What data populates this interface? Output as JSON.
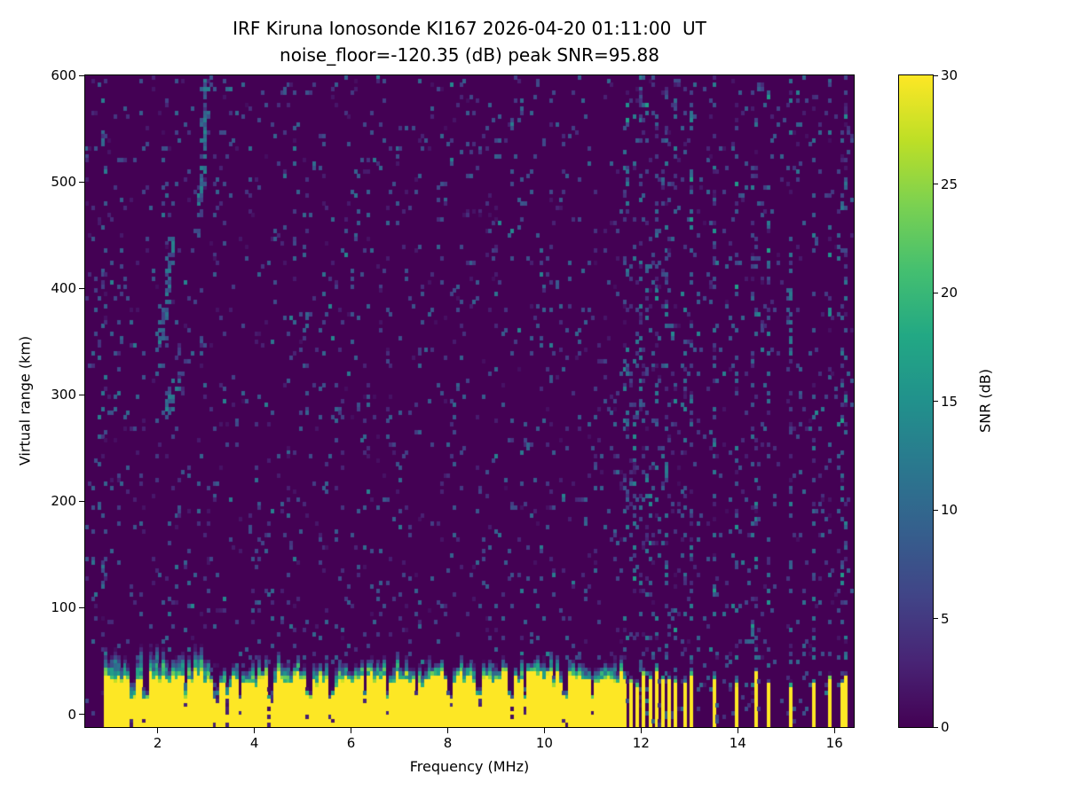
{
  "chart_data": {
    "type": "heatmap",
    "title": "IRF Kiruna Ionosonde KI167 2026-04-20 01:11:00  UT",
    "subtitle": "noise_floor=-120.35 (dB) peak SNR=95.88",
    "xlabel": "Frequency (MHz)",
    "ylabel": "Virtual range (km)",
    "xlim": [
      0.5,
      16.4
    ],
    "ylim": [
      -12,
      600
    ],
    "xticks": [
      2,
      4,
      6,
      8,
      10,
      12,
      14,
      16
    ],
    "yticks": [
      0,
      100,
      200,
      300,
      400,
      500,
      600
    ],
    "grid": false,
    "colorbar": {
      "label": "SNR (dB)",
      "min": 0,
      "max": 30,
      "ticks": [
        0,
        5,
        10,
        15,
        20,
        25,
        30
      ]
    },
    "colormap": {
      "name": "viridis",
      "stops": [
        [
          0.0,
          "#440154"
        ],
        [
          0.1,
          "#482475"
        ],
        [
          0.2,
          "#414487"
        ],
        [
          0.3,
          "#355f8d"
        ],
        [
          0.4,
          "#2a788e"
        ],
        [
          0.5,
          "#21918c"
        ],
        [
          0.6,
          "#22a884"
        ],
        [
          0.7,
          "#44bf70"
        ],
        [
          0.8,
          "#7ad151"
        ],
        [
          0.9,
          "#bddf26"
        ],
        [
          1.0,
          "#fde725"
        ]
      ]
    },
    "noise": {
      "seed": 42,
      "speckle_prob": 0.055,
      "speckle_snr_max": 9
    },
    "noise_columns": {
      "freqs": [
        0.85,
        0.95,
        11.7,
        11.85,
        12.0,
        12.15,
        12.3,
        12.5,
        12.7,
        12.9,
        13.05,
        13.5,
        14.0,
        14.35,
        14.65,
        15.1,
        15.55,
        15.9,
        16.2
      ],
      "tolerance_mhz": 0.04,
      "speckle_prob": 0.2,
      "speckle_snr_max": 12
    },
    "ground_clutter": {
      "freq_min": 0.9,
      "freq_max": 11.62,
      "peak_snr": 30,
      "base_height_km": 33,
      "jitter_km": 7,
      "transition_km": 13,
      "dips": [
        1.5,
        1.75,
        2.6,
        3.2,
        3.45,
        3.7,
        4.35,
        5.15,
        5.6,
        6.3,
        6.75,
        7.35,
        8.05,
        8.65,
        9.3,
        9.6,
        10.45,
        11.0
      ],
      "dip_tolerance_mhz": 0.05
    },
    "rfi_stripes": {
      "freq_range": [
        11.62,
        13.1
      ],
      "period_mhz": 0.13,
      "duty": 0.5,
      "height_km": 34
    },
    "rfi_columns": {
      "freqs": [
        13.5,
        14.0,
        14.35,
        14.65,
        15.1,
        15.55,
        15.9,
        16.2
      ],
      "tolerance_mhz": 0.035,
      "height_km": 30
    },
    "echo_trace": {
      "snr_min": 5,
      "snr_max": 14,
      "points": [
        [
          2.05,
          352
        ],
        [
          2.08,
          358
        ],
        [
          2.11,
          365
        ],
        [
          2.14,
          373
        ],
        [
          2.17,
          382
        ],
        [
          2.2,
          392
        ],
        [
          2.23,
          402
        ],
        [
          2.26,
          414
        ],
        [
          2.29,
          426
        ],
        [
          2.32,
          438
        ],
        [
          2.15,
          283
        ],
        [
          2.2,
          290
        ],
        [
          2.27,
          297
        ],
        [
          2.35,
          304
        ],
        [
          2.43,
          310
        ],
        [
          2.85,
          455
        ],
        [
          2.88,
          470
        ],
        [
          2.9,
          486
        ],
        [
          2.92,
          502
        ],
        [
          2.94,
          518
        ],
        [
          2.96,
          534
        ],
        [
          2.97,
          550
        ],
        [
          2.99,
          565
        ],
        [
          3.0,
          578
        ],
        [
          2.99,
          590
        ]
      ]
    },
    "render": {
      "freq_bins": 240,
      "range_bins": 165
    }
  }
}
